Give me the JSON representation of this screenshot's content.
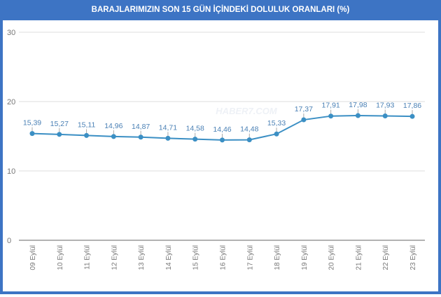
{
  "chart_data": {
    "type": "line",
    "title": "BARAJLARIMIZIN SON 15 GÜN İÇİNDEKİ DOLULUK ORANLARI (%)",
    "xlabel": "",
    "ylabel": "",
    "ylim": [
      0,
      30
    ],
    "yticks": [
      0,
      10,
      20,
      30
    ],
    "grid": true,
    "categories": [
      "09 Eylül",
      "10 Eylül",
      "11 Eylül",
      "12 Eylül",
      "13 Eylül",
      "14 Eylül",
      "15 Eylül",
      "16 Eylül",
      "17 Eylül",
      "18 Eylül",
      "19 Eylül",
      "20 Eylül",
      "21 Eylül",
      "22 Eylül",
      "23 Eylül"
    ],
    "values": [
      15.39,
      15.27,
      15.11,
      14.96,
      14.87,
      14.71,
      14.58,
      14.46,
      14.48,
      15.33,
      17.37,
      17.91,
      17.98,
      17.93,
      17.86
    ],
    "data_labels": [
      "15,39",
      "15,27",
      "15,11",
      "14,96",
      "14,87",
      "14,71",
      "14,58",
      "14,46",
      "14,48",
      "15,33",
      "17,37",
      "17,91",
      "17,98",
      "17,93",
      "17,86"
    ],
    "series_color": "#3b8fc4",
    "watermark": "HABER7.COM"
  }
}
